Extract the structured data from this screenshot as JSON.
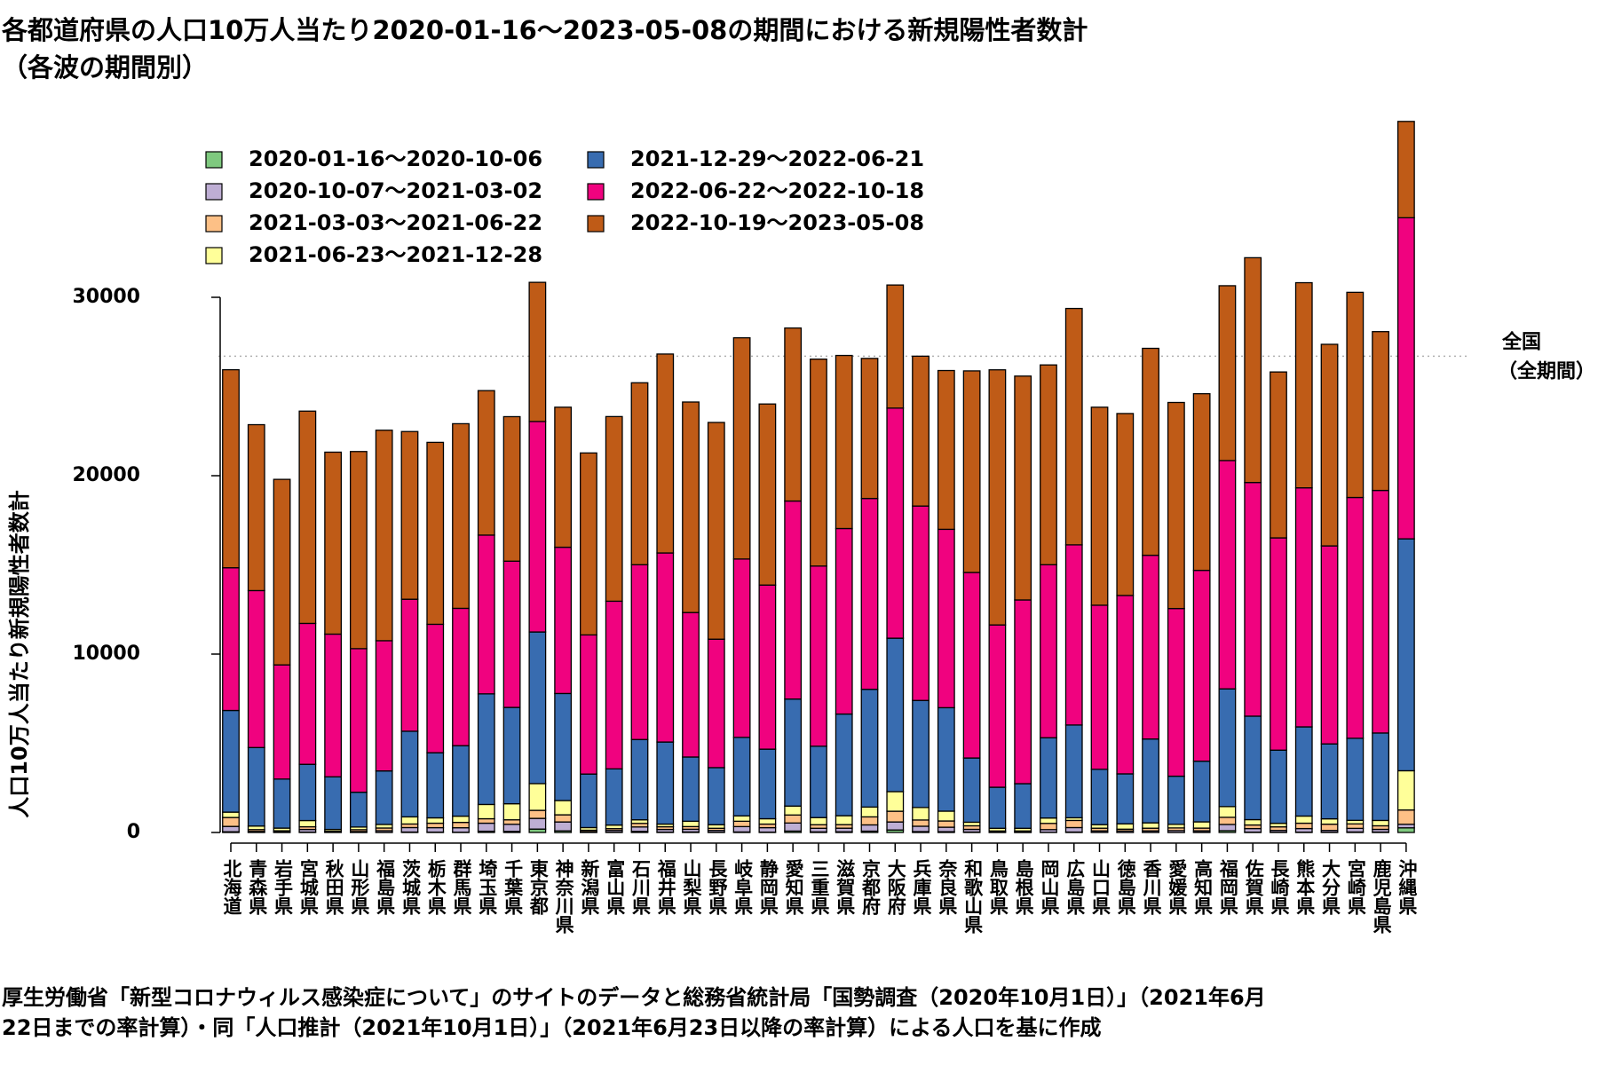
{
  "chart_data": {
    "type": "bar",
    "stacked": true,
    "title": "各都道府県の人口10万人当たり2020-01-16〜2023-05-08の期間における新規陽性者数計",
    "subtitle": "（各波の期間別）",
    "xlabel": "",
    "ylabel": "人口10万人当たり新規陽性者数計",
    "ylim": [
      0,
      40000
    ],
    "yticks": [
      0,
      10000,
      20000,
      30000
    ],
    "legend_position": "top-left",
    "grid": false,
    "reference_line": {
      "value": 26700,
      "label_line1": "全国",
      "label_line2": "（全期間）",
      "style": "dotted"
    },
    "categories": [
      "北海道",
      "青森県",
      "岩手県",
      "宮城県",
      "秋田県",
      "山形県",
      "福島県",
      "茨城県",
      "栃木県",
      "群馬県",
      "埼玉県",
      "千葉県",
      "東京都",
      "神奈川県",
      "新潟県",
      "富山県",
      "石川県",
      "福井県",
      "山梨県",
      "長野県",
      "岐阜県",
      "静岡県",
      "愛知県",
      "三重県",
      "滋賀県",
      "京都府",
      "大阪府",
      "兵庫県",
      "奈良県",
      "和歌山県",
      "鳥取県",
      "島根県",
      "岡山県",
      "広島県",
      "山口県",
      "徳島県",
      "香川県",
      "愛媛県",
      "高知県",
      "福岡県",
      "佐賀県",
      "長崎県",
      "熊本県",
      "大分県",
      "宮崎県",
      "鹿児島県",
      "沖縄県"
    ],
    "series": [
      {
        "name": "2020-01-16〜2020-10-06",
        "color": "#7fc97f",
        "values": [
          40,
          10,
          5,
          20,
          10,
          5,
          10,
          25,
          20,
          15,
          70,
          60,
          190,
          90,
          5,
          15,
          60,
          20,
          30,
          15,
          30,
          20,
          80,
          35,
          40,
          75,
          140,
          50,
          45,
          25,
          5,
          5,
          10,
          25,
          10,
          5,
          10,
          5,
          15,
          100,
          20,
          15,
          20,
          15,
          30,
          25,
          260
        ]
      },
      {
        "name": "2020-10-07〜2021-03-02",
        "color": "#beaed4",
        "values": [
          300,
          50,
          40,
          150,
          30,
          50,
          90,
          250,
          250,
          250,
          450,
          400,
          600,
          500,
          40,
          100,
          250,
          150,
          150,
          100,
          300,
          250,
          450,
          200,
          200,
          350,
          450,
          300,
          250,
          150,
          30,
          30,
          150,
          250,
          80,
          80,
          80,
          100,
          80,
          350,
          200,
          100,
          200,
          100,
          200,
          150,
          200
        ]
      },
      {
        "name": "2021-03-03〜2021-06-22",
        "color": "#fdc086",
        "values": [
          500,
          100,
          50,
          150,
          30,
          100,
          150,
          200,
          250,
          300,
          250,
          250,
          450,
          400,
          80,
          100,
          200,
          150,
          150,
          120,
          300,
          200,
          450,
          200,
          200,
          450,
          600,
          350,
          350,
          200,
          50,
          50,
          350,
          400,
          150,
          100,
          150,
          150,
          150,
          400,
          200,
          200,
          300,
          350,
          250,
          200,
          800
        ]
      },
      {
        "name": "2021-06-23〜2021-12-28",
        "color": "#ffff99",
        "values": [
          300,
          200,
          150,
          350,
          100,
          150,
          200,
          400,
          300,
          350,
          800,
          900,
          1500,
          800,
          150,
          200,
          200,
          150,
          300,
          200,
          300,
          300,
          500,
          400,
          500,
          550,
          1100,
          700,
          550,
          200,
          150,
          150,
          300,
          150,
          200,
          300,
          300,
          200,
          350,
          600,
          300,
          200,
          400,
          300,
          200,
          300,
          2200
        ]
      },
      {
        "name": "2021-12-29〜2022-06-21",
        "color": "#386cb0",
        "values": [
          5700,
          4400,
          2750,
          3150,
          2950,
          1950,
          3000,
          4800,
          3650,
          3950,
          6200,
          5400,
          8500,
          6000,
          3000,
          3150,
          4500,
          4600,
          3600,
          3200,
          4400,
          3900,
          6000,
          4000,
          5700,
          6600,
          8600,
          6000,
          5800,
          3600,
          2300,
          2500,
          4500,
          5200,
          3100,
          2800,
          4700,
          2700,
          3400,
          6600,
          5800,
          4100,
          5000,
          4200,
          4600,
          4900,
          13000
        ]
      },
      {
        "name": "2022-06-22〜2022-10-18",
        "color": "#f0027f",
        "values": [
          8000,
          8800,
          6400,
          7900,
          8000,
          8050,
          7300,
          7400,
          7200,
          7700,
          8900,
          8200,
          11800,
          8200,
          7800,
          9400,
          9800,
          10600,
          8100,
          7200,
          10000,
          9200,
          11100,
          10100,
          10400,
          10700,
          12900,
          10900,
          10000,
          10400,
          9100,
          10300,
          9700,
          10100,
          9200,
          10000,
          10300,
          9400,
          10700,
          12800,
          13100,
          11900,
          13400,
          11100,
          13500,
          13600,
          18000
        ]
      },
      {
        "name": "2022-10-19〜2023-05-08",
        "color": "#bf5b17",
        "values": [
          11100,
          9300,
          10400,
          11900,
          10200,
          11050,
          11800,
          9400,
          10200,
          10350,
          8100,
          8100,
          7800,
          7850,
          10200,
          10350,
          10200,
          11150,
          11800,
          12150,
          12400,
          10150,
          9700,
          11600,
          9700,
          7850,
          6900,
          8400,
          8900,
          11300,
          14300,
          12550,
          11200,
          13250,
          11100,
          10200,
          11600,
          11550,
          9900,
          9800,
          12600,
          9300,
          11500,
          11300,
          11500,
          8900,
          5400
        ]
      }
    ]
  }
}
